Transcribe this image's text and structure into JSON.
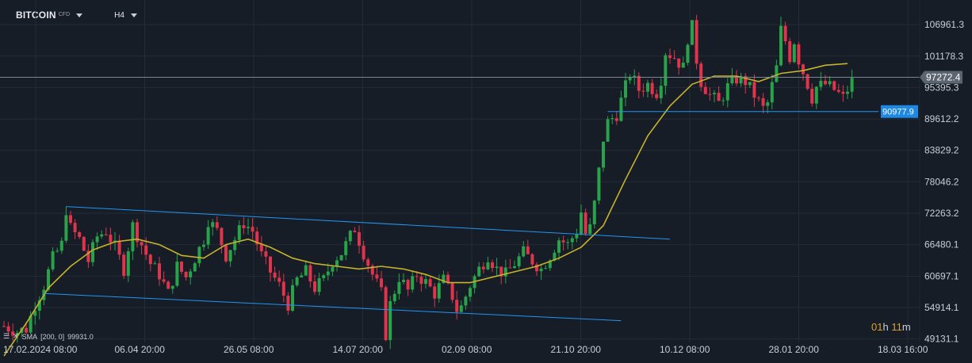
{
  "header": {
    "symbol": "BITCOIN",
    "symbol_type": "CFD",
    "timeframe": "H4"
  },
  "indicator": {
    "label": "SMA",
    "params": "[200,  0]",
    "value": "99931.0"
  },
  "timer": {
    "hours": "01",
    "h_unit": "h",
    "minutes": "11",
    "m_unit": "m"
  },
  "colors": {
    "up": "#29a34a",
    "down": "#e0344c",
    "sma": "#c6b22c",
    "trend": "#2196f3",
    "grid": "#232c37",
    "price_line": "#7a8591",
    "current_tag": "#5b6570",
    "label_tag": "#1e88e5"
  },
  "chart_data": {
    "type": "candlestick",
    "title": "",
    "ylim": [
      48500,
      111500
    ],
    "y_ticks": [
      "106961.3",
      "101178.3",
      "95395.3",
      "89612.2",
      "83829.2",
      "78046.2",
      "72263.2",
      "66480.1",
      "60697.1",
      "54914.1",
      "49131.1"
    ],
    "x_ticks": [
      "17.02.2024  08:00",
      "06.04  20:00",
      "26.05  08:00",
      "14.07  20:00",
      "02.09  08:00",
      "21.10  20:00",
      "10.12  08:00",
      "28.01  20:00",
      "18.03  16:00"
    ],
    "current_price": "97272.4",
    "horizontal_line": "90977.9",
    "price_path": [
      [
        0,
        51500
      ],
      [
        3,
        50500
      ],
      [
        5,
        51000
      ],
      [
        7,
        55500
      ],
      [
        9,
        59000
      ],
      [
        11,
        64000
      ],
      [
        13,
        66500
      ],
      [
        14,
        73000
      ],
      [
        15,
        69500
      ],
      [
        17,
        67500
      ],
      [
        19,
        63500
      ],
      [
        21,
        68000
      ],
      [
        23,
        69000
      ],
      [
        25,
        66000
      ],
      [
        27,
        62000
      ],
      [
        29,
        70000
      ],
      [
        31,
        66500
      ],
      [
        33,
        63000
      ],
      [
        35,
        61000
      ],
      [
        37,
        57500
      ],
      [
        39,
        62500
      ],
      [
        41,
        60500
      ],
      [
        43,
        64000
      ],
      [
        45,
        67500
      ],
      [
        46,
        71000
      ],
      [
        48,
        69000
      ],
      [
        50,
        64500
      ],
      [
        52,
        67500
      ],
      [
        54,
        70500
      ],
      [
        56,
        69000
      ],
      [
        58,
        64500
      ],
      [
        60,
        61500
      ],
      [
        62,
        59000
      ],
      [
        64,
        55500
      ],
      [
        66,
        60000
      ],
      [
        68,
        61500
      ],
      [
        70,
        58500
      ],
      [
        72,
        60000
      ],
      [
        74,
        63500
      ],
      [
        76,
        65000
      ],
      [
        78,
        68000
      ],
      [
        79,
        69500
      ],
      [
        81,
        65000
      ],
      [
        83,
        61000
      ],
      [
        85,
        57500
      ],
      [
        86,
        50000
      ],
      [
        87,
        55500
      ],
      [
        89,
        60500
      ],
      [
        91,
        58000
      ],
      [
        93,
        61000
      ],
      [
        95,
        59500
      ],
      [
        97,
        57500
      ],
      [
        99,
        60000
      ],
      [
        101,
        57000
      ],
      [
        102,
        54500
      ],
      [
        103,
        55000
      ],
      [
        105,
        59000
      ],
      [
        107,
        62000
      ],
      [
        109,
        64500
      ],
      [
        111,
        62000
      ],
      [
        113,
        61000
      ],
      [
        115,
        63000
      ],
      [
        117,
        65000
      ],
      [
        119,
        63500
      ],
      [
        121,
        62000
      ],
      [
        123,
        64500
      ],
      [
        125,
        67500
      ],
      [
        127,
        66500
      ],
      [
        129,
        69000
      ],
      [
        130,
        72500
      ],
      [
        131,
        68500
      ],
      [
        132,
        69500
      ],
      [
        133,
        74000
      ],
      [
        134,
        80000
      ],
      [
        135,
        86000
      ],
      [
        136,
        89000
      ],
      [
        138,
        90500
      ],
      [
        140,
        95500
      ],
      [
        141,
        98000
      ],
      [
        143,
        95000
      ],
      [
        145,
        96000
      ],
      [
        147,
        94500
      ],
      [
        148,
        97000
      ],
      [
        149,
        102000
      ],
      [
        151,
        101000
      ],
      [
        153,
        99000
      ],
      [
        154,
        104500
      ],
      [
        155,
        106500
      ],
      [
        156,
        100500
      ],
      [
        157,
        96500
      ],
      [
        159,
        94000
      ],
      [
        161,
        92500
      ],
      [
        163,
        95500
      ],
      [
        165,
        97000
      ],
      [
        167,
        96500
      ],
      [
        169,
        94000
      ],
      [
        171,
        91500
      ],
      [
        172,
        92500
      ],
      [
        174,
        99000
      ],
      [
        175,
        106000
      ],
      [
        176,
        104000
      ],
      [
        177,
        101000
      ],
      [
        178,
        104000
      ],
      [
        179,
        100500
      ],
      [
        181,
        96000
      ],
      [
        182,
        93500
      ],
      [
        183,
        95500
      ],
      [
        185,
        96000
      ],
      [
        187,
        95000
      ],
      [
        189,
        93500
      ],
      [
        190,
        95000
      ],
      [
        191,
        96500
      ]
    ],
    "sma_path": [
      [
        0,
        46000
      ],
      [
        5,
        52000
      ],
      [
        10,
        58500
      ],
      [
        15,
        62500
      ],
      [
        20,
        65500
      ],
      [
        25,
        67000
      ],
      [
        30,
        67500
      ],
      [
        35,
        66500
      ],
      [
        40,
        64500
      ],
      [
        45,
        64000
      ],
      [
        50,
        66500
      ],
      [
        55,
        67500
      ],
      [
        60,
        66000
      ],
      [
        65,
        64000
      ],
      [
        70,
        63000
      ],
      [
        75,
        62500
      ],
      [
        80,
        62000
      ],
      [
        85,
        62500
      ],
      [
        90,
        62000
      ],
      [
        95,
        61000
      ],
      [
        100,
        59500
      ],
      [
        105,
        59500
      ],
      [
        110,
        60500
      ],
      [
        115,
        61500
      ],
      [
        120,
        62500
      ],
      [
        125,
        64000
      ],
      [
        130,
        66000
      ],
      [
        135,
        70000
      ],
      [
        140,
        78500
      ],
      [
        145,
        86500
      ],
      [
        150,
        92000
      ],
      [
        155,
        96000
      ],
      [
        160,
        97500
      ],
      [
        165,
        97500
      ],
      [
        170,
        96500
      ],
      [
        175,
        98000
      ],
      [
        180,
        98500
      ],
      [
        185,
        99500
      ],
      [
        190,
        99800
      ]
    ],
    "channel_upper": [
      [
        14,
        73500
      ],
      [
        150,
        67500
      ]
    ],
    "channel_lower": [
      [
        9,
        57500
      ],
      [
        139,
        52500
      ]
    ],
    "resistance": [
      [
        136,
        90977.9
      ],
      [
        197,
        90977.9
      ]
    ]
  }
}
